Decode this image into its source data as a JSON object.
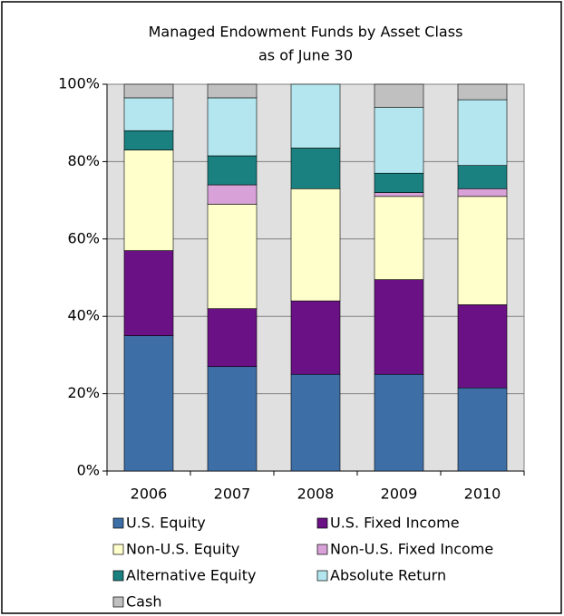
{
  "chart_data": {
    "type": "stacked_bar",
    "title": "Managed Endowment Funds by Asset Class",
    "subtitle": "as of June 30",
    "categories": [
      "2006",
      "2007",
      "2008",
      "2009",
      "2010"
    ],
    "series": [
      {
        "name": "U.S. Equity",
        "color": "#3e6ea6",
        "values": [
          35,
          27,
          25,
          25,
          21.5
        ]
      },
      {
        "name": "U.S. Fixed Income",
        "color": "#6a1185",
        "values": [
          22,
          15,
          19,
          24.5,
          21.5
        ]
      },
      {
        "name": "Non-U.S. Equity",
        "color": "#ffffcc",
        "values": [
          26,
          27,
          29,
          21.5,
          28
        ]
      },
      {
        "name": "Non-U.S. Fixed Income",
        "color": "#d8a2d8",
        "values": [
          0,
          5,
          0,
          1,
          2
        ]
      },
      {
        "name": "Alternative Equity",
        "color": "#1a8080",
        "values": [
          5,
          7.5,
          10.5,
          5,
          6
        ]
      },
      {
        "name": "Absolute Return",
        "color": "#b3e6ee",
        "values": [
          8.5,
          15,
          16.5,
          17,
          17
        ]
      },
      {
        "name": "Cash",
        "color": "#c0c0c0",
        "values": [
          3.5,
          3.5,
          0,
          6,
          4
        ]
      }
    ],
    "ylim": [
      0,
      100
    ],
    "yticks": [
      {
        "value": 0,
        "label": "0%"
      },
      {
        "value": 20,
        "label": "20%"
      },
      {
        "value": 40,
        "label": "40%"
      },
      {
        "value": 60,
        "label": "60%"
      },
      {
        "value": 80,
        "label": "80%"
      },
      {
        "value": 100,
        "label": "100%"
      }
    ],
    "grid": true
  }
}
